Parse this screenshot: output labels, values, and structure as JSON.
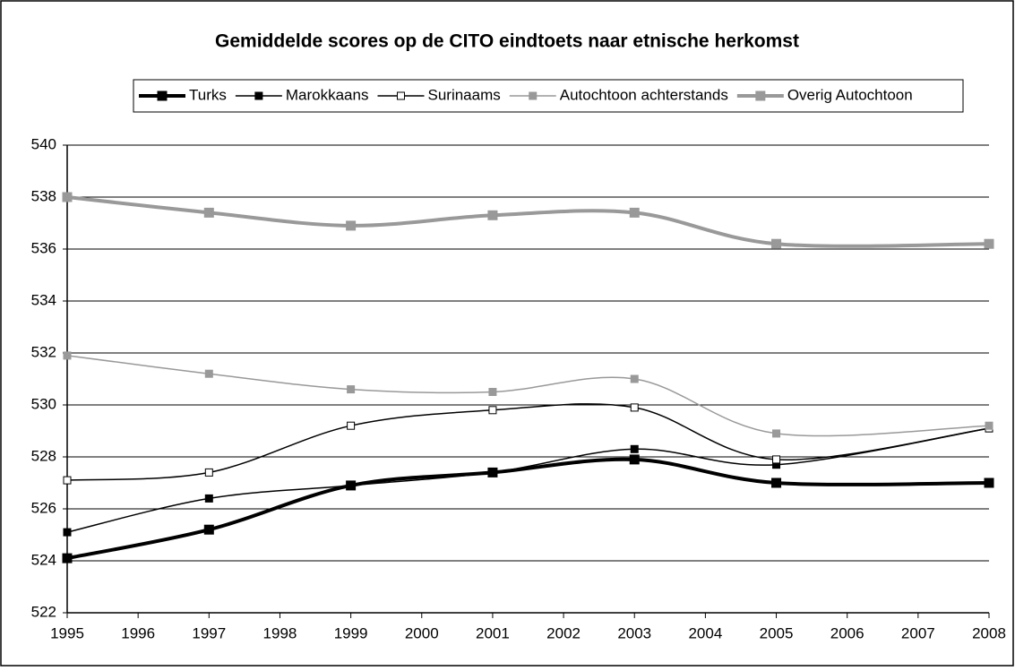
{
  "chart_data": {
    "type": "line",
    "title": "Gemiddelde scores op de CITO eindtoets naar etnische herkomst",
    "x": [
      1995,
      1997,
      1999,
      2001,
      2003,
      2005,
      2008
    ],
    "xlim": [
      1995,
      2008
    ],
    "xticks": [
      1995,
      1996,
      1997,
      1998,
      1999,
      2000,
      2001,
      2002,
      2003,
      2004,
      2005,
      2006,
      2007,
      2008
    ],
    "ylim": [
      522,
      540
    ],
    "yticks": [
      522,
      524,
      526,
      528,
      530,
      532,
      534,
      536,
      538,
      540
    ],
    "grid": true,
    "legend": "top",
    "series": [
      {
        "name": "Turks",
        "color": "#000000",
        "line_width": 4,
        "marker_fill": "#000000",
        "values": [
          524.1,
          525.2,
          526.9,
          527.4,
          527.9,
          527.0,
          527.0
        ]
      },
      {
        "name": "Marokkaans",
        "color": "#000000",
        "line_width": 1.5,
        "marker_fill": "#000000",
        "values": [
          525.1,
          526.4,
          526.9,
          527.4,
          528.3,
          527.7,
          529.1
        ]
      },
      {
        "name": "Surinaams",
        "color": "#000000",
        "line_width": 1.5,
        "marker_fill": "#ffffff",
        "values": [
          527.1,
          527.4,
          529.2,
          529.8,
          529.9,
          527.9,
          529.1
        ]
      },
      {
        "name": "Autochtoon achterstands",
        "color": "#999999",
        "line_width": 1.5,
        "marker_fill": "#999999",
        "values": [
          531.9,
          531.2,
          530.6,
          530.5,
          531.0,
          528.9,
          529.2
        ]
      },
      {
        "name": "Overig Autochtoon",
        "color": "#999999",
        "line_width": 4,
        "marker_fill": "#999999",
        "values": [
          538.0,
          537.4,
          536.9,
          537.3,
          537.4,
          536.2,
          536.2
        ]
      }
    ]
  }
}
